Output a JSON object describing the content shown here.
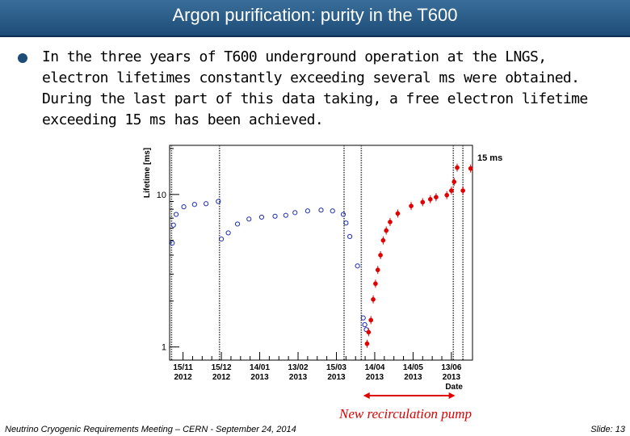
{
  "title": "Argon purification: purity in the T600",
  "bullet_lines": [
    "In the three years of T600 underground operation at the LNGS,",
    "electron lifetimes constantly exceeding several ms were obtained.",
    "During the last part of this data taking, a free electron lifetime",
    "exceeding 15 ms has been achieved."
  ],
  "annotation": "New recirculation pump",
  "footer": {
    "left": "Neutrino Cryogenic Requirements Meeting – CERN - September 24, 2014",
    "right": "Slide: 13"
  },
  "colors": {
    "title_bg": "#1d4c77",
    "open_points": "#1f2fb0",
    "red_points": "#e00000"
  },
  "chart_data": {
    "type": "scatter",
    "ylabel": "Lifetime [ms]",
    "xlabel": "Date",
    "yscale": "log",
    "ylim": [
      0.82,
      21
    ],
    "xlim": [
      -0.35,
      7.55
    ],
    "y_ticks": [
      {
        "value": 1,
        "label": "1"
      },
      {
        "value": 10,
        "label": "10"
      }
    ],
    "x_ticks": [
      {
        "pos": 0,
        "label1": "15/11",
        "label2": "2012"
      },
      {
        "pos": 1,
        "label1": "15/12",
        "label2": "2012"
      },
      {
        "pos": 2,
        "label1": "14/01",
        "label2": "2013"
      },
      {
        "pos": 3,
        "label1": "13/02",
        "label2": "2013"
      },
      {
        "pos": 4,
        "label1": "15/03",
        "label2": "2013"
      },
      {
        "pos": 5,
        "label1": "14/04",
        "label2": "2013"
      },
      {
        "pos": 6,
        "label1": "14/05",
        "label2": "2013"
      },
      {
        "pos": 7,
        "label1": "13/06",
        "label2": "2013"
      }
    ],
    "vlines": [
      -0.3,
      0.95,
      4.2,
      4.65,
      7.05,
      7.3
    ],
    "reference_label": "15 ms",
    "reference_value": 15,
    "pump_arrow_range": [
      4.7,
      7.1
    ],
    "series": [
      {
        "name": "before new recirculation pump",
        "marker": "open-circle",
        "x": [
          -0.28,
          -0.25,
          -0.18,
          0.02,
          0.3,
          0.6,
          0.92,
          1.0,
          1.18,
          1.42,
          1.72,
          2.05,
          2.4,
          2.68,
          2.92,
          3.25,
          3.6,
          3.9,
          4.18,
          4.25,
          4.35,
          4.55,
          4.7,
          4.74,
          4.78
        ],
        "y": [
          4.8,
          6.3,
          7.4,
          8.3,
          8.6,
          8.7,
          9.0,
          5.1,
          5.6,
          6.4,
          6.9,
          7.1,
          7.2,
          7.3,
          7.6,
          7.8,
          7.9,
          7.8,
          7.4,
          6.5,
          5.3,
          3.4,
          1.55,
          1.4,
          1.3
        ]
      },
      {
        "name": "after new recirculation pump",
        "marker": "filled-circle",
        "x": [
          4.8,
          4.84,
          4.9,
          4.96,
          5.02,
          5.08,
          5.15,
          5.22,
          5.3,
          5.4,
          5.6,
          5.95,
          6.25,
          6.45,
          6.6,
          6.88,
          7.0,
          7.07,
          7.15,
          7.3,
          7.5
        ],
        "y": [
          1.05,
          1.25,
          1.5,
          2.05,
          2.6,
          3.2,
          4.0,
          5.0,
          5.8,
          6.6,
          7.5,
          8.4,
          8.9,
          9.3,
          9.6,
          9.9,
          10.6,
          12.1,
          15.0,
          10.6,
          14.8
        ]
      }
    ]
  }
}
